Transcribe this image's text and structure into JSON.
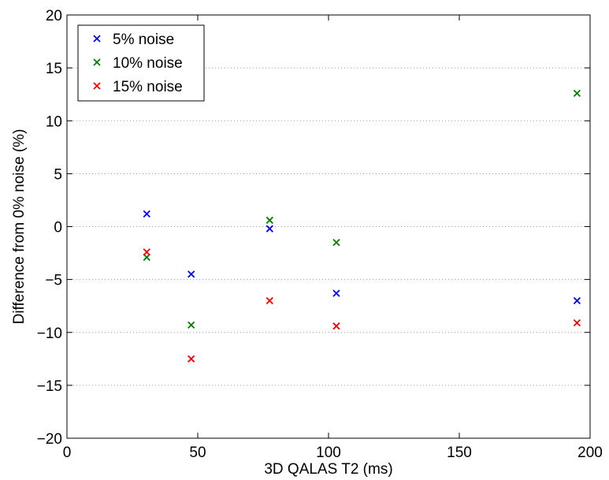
{
  "chart_data": {
    "type": "scatter",
    "title": "",
    "xlabel": "3D QALAS T2 (ms)",
    "ylabel": "Difference from 0% noise (%)",
    "xlim": [
      0,
      200
    ],
    "ylim": [
      -20,
      20
    ],
    "xticks": [
      0,
      50,
      100,
      150,
      200
    ],
    "yticks": [
      -20,
      -15,
      -10,
      -5,
      0,
      5,
      10,
      15,
      20
    ],
    "grid": "horizontal-dotted",
    "legend_position": "top-left",
    "marker": "x",
    "series": [
      {
        "name": "5% noise",
        "color": "#0000ff",
        "x": [
          30.5,
          47.5,
          77.5,
          103,
          195
        ],
        "y": [
          1.2,
          -4.5,
          -0.2,
          -6.3,
          -7.0
        ]
      },
      {
        "name": "10% noise",
        "color": "#008000",
        "x": [
          30.5,
          47.5,
          77.5,
          103,
          195
        ],
        "y": [
          -2.9,
          -9.3,
          0.6,
          -1.5,
          12.6
        ]
      },
      {
        "name": "15% noise",
        "color": "#ff0000",
        "x": [
          30.5,
          47.5,
          77.5,
          103,
          195
        ],
        "y": [
          -2.4,
          -12.5,
          -7.0,
          -9.4,
          -9.1
        ]
      }
    ]
  }
}
